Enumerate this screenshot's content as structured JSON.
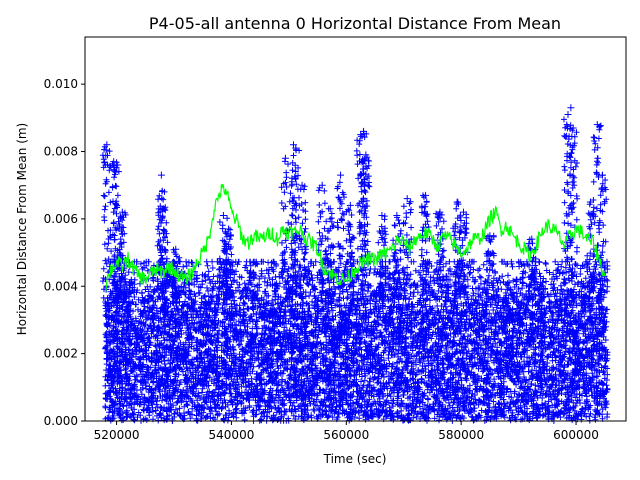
{
  "chart_data": {
    "type": "scatter",
    "title": "P4-05-all antenna 0 Horizontal Distance From Mean",
    "xlabel": "Time (sec)",
    "ylabel": "Horizontal Distance From Mean (m)",
    "xlim": [
      514500,
      608700
    ],
    "ylim": [
      0,
      0.0114
    ],
    "x_ticks": [
      520000,
      540000,
      560000,
      580000,
      600000
    ],
    "x_tick_labels": [
      "520000",
      "540000",
      "560000",
      "580000",
      "600000"
    ],
    "y_ticks": [
      0.0,
      0.002,
      0.004,
      0.006,
      0.008,
      0.01
    ],
    "y_tick_labels": [
      "0.000",
      "0.002",
      "0.004",
      "0.006",
      "0.008",
      "0.010"
    ],
    "grid": false,
    "legend": "none",
    "series": [
      {
        "kind": "scatter-plus",
        "color": "#0000ff",
        "x_range": [
          518000,
          605500
        ],
        "bulk_max": 0.0045,
        "outliers": [
          [
            518300,
            0.0082
          ],
          [
            519500,
            0.0077
          ],
          [
            520200,
            0.0076
          ],
          [
            521000,
            0.0062
          ],
          [
            527800,
            0.0073
          ],
          [
            528200,
            0.0063
          ],
          [
            530300,
            0.0051
          ],
          [
            538600,
            0.0061
          ],
          [
            539500,
            0.0057
          ],
          [
            549400,
            0.0078
          ],
          [
            550800,
            0.0082
          ],
          [
            551200,
            0.0081
          ],
          [
            552300,
            0.007
          ],
          [
            555800,
            0.007
          ],
          [
            557200,
            0.0063
          ],
          [
            559000,
            0.0073
          ],
          [
            560700,
            0.0064
          ],
          [
            562500,
            0.0085
          ],
          [
            563000,
            0.0086
          ],
          [
            563400,
            0.0079
          ],
          [
            566200,
            0.0061
          ],
          [
            568800,
            0.0061
          ],
          [
            570600,
            0.0066
          ],
          [
            573800,
            0.0067
          ],
          [
            576300,
            0.0062
          ],
          [
            579300,
            0.0065
          ],
          [
            580400,
            0.0062
          ],
          [
            585000,
            0.0055
          ],
          [
            592300,
            0.0054
          ],
          [
            598600,
            0.0091
          ],
          [
            599100,
            0.0093
          ],
          [
            599500,
            0.0087
          ],
          [
            602500,
            0.0065
          ],
          [
            603700,
            0.0088
          ],
          [
            604600,
            0.0073
          ]
        ]
      },
      {
        "kind": "line",
        "color": "#00ff00",
        "points": [
          [
            518000,
            0.004
          ],
          [
            519000,
            0.0045
          ],
          [
            520000,
            0.0047
          ],
          [
            521000,
            0.0046
          ],
          [
            522000,
            0.0048
          ],
          [
            523000,
            0.0045
          ],
          [
            524000,
            0.0043
          ],
          [
            525000,
            0.0042
          ],
          [
            526000,
            0.0044
          ],
          [
            527000,
            0.0045
          ],
          [
            528000,
            0.0044
          ],
          [
            529000,
            0.0046
          ],
          [
            530000,
            0.0045
          ],
          [
            531000,
            0.0043
          ],
          [
            532000,
            0.0042
          ],
          [
            533000,
            0.0044
          ],
          [
            534000,
            0.0047
          ],
          [
            535000,
            0.005
          ],
          [
            536000,
            0.0054
          ],
          [
            537000,
            0.0063
          ],
          [
            538000,
            0.0068
          ],
          [
            539000,
            0.0069
          ],
          [
            540000,
            0.0062
          ],
          [
            541000,
            0.0059
          ],
          [
            542000,
            0.0054
          ],
          [
            543000,
            0.0053
          ],
          [
            544000,
            0.0055
          ],
          [
            545000,
            0.0054
          ],
          [
            546000,
            0.0055
          ],
          [
            547000,
            0.0056
          ],
          [
            548000,
            0.0054
          ],
          [
            549000,
            0.0057
          ],
          [
            550000,
            0.0056
          ],
          [
            551000,
            0.0056
          ],
          [
            552000,
            0.0057
          ],
          [
            553000,
            0.0054
          ],
          [
            554000,
            0.0053
          ],
          [
            555000,
            0.0051
          ],
          [
            556000,
            0.0046
          ],
          [
            557000,
            0.0044
          ],
          [
            558000,
            0.0043
          ],
          [
            559000,
            0.0042
          ],
          [
            560000,
            0.0042
          ],
          [
            561000,
            0.0044
          ],
          [
            562000,
            0.0046
          ],
          [
            563000,
            0.0047
          ],
          [
            564000,
            0.0048
          ],
          [
            565000,
            0.0048
          ],
          [
            566000,
            0.0049
          ],
          [
            567000,
            0.005
          ],
          [
            568000,
            0.0051
          ],
          [
            569000,
            0.0054
          ],
          [
            570000,
            0.0053
          ],
          [
            571000,
            0.0051
          ],
          [
            572000,
            0.0054
          ],
          [
            573000,
            0.0055
          ],
          [
            574000,
            0.0056
          ],
          [
            575000,
            0.0054
          ],
          [
            576000,
            0.0052
          ],
          [
            577000,
            0.0055
          ],
          [
            578000,
            0.0054
          ],
          [
            579000,
            0.0052
          ],
          [
            580000,
            0.005
          ],
          [
            581000,
            0.0051
          ],
          [
            582000,
            0.0054
          ],
          [
            583000,
            0.0054
          ],
          [
            584000,
            0.0056
          ],
          [
            585000,
            0.006
          ],
          [
            586000,
            0.0062
          ],
          [
            587000,
            0.0057
          ],
          [
            588000,
            0.0058
          ],
          [
            589000,
            0.0055
          ],
          [
            590000,
            0.0053
          ],
          [
            591000,
            0.0051
          ],
          [
            592000,
            0.0049
          ],
          [
            593000,
            0.0052
          ],
          [
            594000,
            0.0056
          ],
          [
            595000,
            0.0058
          ],
          [
            596000,
            0.0057
          ],
          [
            597000,
            0.0055
          ],
          [
            598000,
            0.0052
          ],
          [
            599000,
            0.0055
          ],
          [
            600000,
            0.0057
          ],
          [
            601000,
            0.0056
          ],
          [
            602000,
            0.0054
          ],
          [
            603000,
            0.0053
          ],
          [
            604000,
            0.0048
          ],
          [
            605000,
            0.0043
          ]
        ]
      }
    ]
  }
}
